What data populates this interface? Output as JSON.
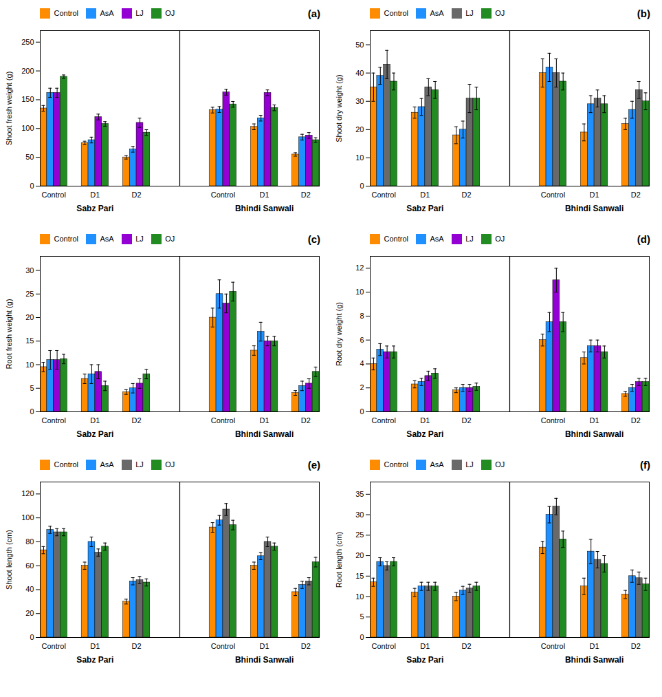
{
  "chart_data": [
    {
      "type": "bar",
      "title": "(a)",
      "ylabel": "Shoot fresh weight (g)",
      "ylim": [
        0,
        270
      ],
      "yticks": [
        0,
        50,
        100,
        150,
        200,
        250
      ],
      "categories": [
        "Control",
        "D1",
        "D2",
        "Control",
        "D1",
        "D2"
      ],
      "annotations": [
        "Sabz Pari",
        "Bhindi Sanwali"
      ],
      "legend": "upper left",
      "grid": false,
      "series": [
        {
          "name": "Control",
          "color": "#FF8C00",
          "values": [
            135,
            75,
            50,
            132,
            103,
            55
          ],
          "errors": [
            5,
            3,
            3,
            5,
            5,
            3
          ]
        },
        {
          "name": "AsA",
          "color": "#1E90FF",
          "values": [
            162,
            80,
            64,
            133,
            118,
            85
          ],
          "errors": [
            8,
            5,
            5,
            5,
            5,
            5
          ]
        },
        {
          "name": "LJ",
          "color": "#9400D3",
          "values": [
            162,
            120,
            110,
            163,
            162,
            88
          ],
          "errors": [
            8,
            5,
            8,
            5,
            5,
            5
          ]
        },
        {
          "name": "OJ",
          "color": "#228B22",
          "values": [
            190,
            108,
            93,
            142,
            136,
            80
          ],
          "errors": [
            3,
            4,
            5,
            5,
            5,
            4
          ]
        }
      ]
    },
    {
      "type": "bar",
      "title": "(b)",
      "ylabel": "Shoot dry weight (g)",
      "ylim": [
        0,
        55
      ],
      "yticks": [
        0,
        10,
        20,
        30,
        40,
        50
      ],
      "categories": [
        "Control",
        "D1",
        "D2",
        "Control",
        "D1",
        "D2"
      ],
      "annotations": [
        "Sabz Pari",
        "Bhindi Sanwali"
      ],
      "legend": "upper left",
      "grid": false,
      "series": [
        {
          "name": "Control",
          "color": "#FF8C00",
          "values": [
            35,
            26,
            18,
            40,
            19,
            22
          ],
          "errors": [
            5,
            2,
            3,
            5,
            3,
            2
          ]
        },
        {
          "name": "AsA",
          "color": "#1E90FF",
          "values": [
            39,
            28,
            20,
            42,
            29,
            27
          ],
          "errors": [
            3,
            3,
            3,
            5,
            3,
            3
          ]
        },
        {
          "name": "LJ",
          "color": "#696969",
          "values": [
            43,
            35,
            31,
            40,
            31,
            34
          ],
          "errors": [
            5,
            3,
            5,
            5,
            3,
            3
          ]
        },
        {
          "name": "OJ",
          "color": "#228B22",
          "values": [
            37,
            34,
            31,
            37,
            29,
            30
          ],
          "errors": [
            3,
            3,
            4,
            3,
            3,
            3
          ]
        }
      ]
    },
    {
      "type": "bar",
      "title": "(c)",
      "ylabel": "Root fresh weight (g)",
      "ylim": [
        0,
        33
      ],
      "yticks": [
        0,
        5,
        10,
        15,
        20,
        25,
        30
      ],
      "categories": [
        "Control",
        "D1",
        "D2",
        "Control",
        "D1",
        "D2"
      ],
      "annotations": [
        "Sabz Pari",
        "Bhindi Sanwali"
      ],
      "legend": "upper left",
      "grid": false,
      "series": [
        {
          "name": "Control",
          "color": "#FF8C00",
          "values": [
            9.5,
            7,
            4.2,
            20,
            13,
            4
          ],
          "errors": [
            1,
            1,
            0.5,
            2,
            1,
            0.5
          ]
        },
        {
          "name": "AsA",
          "color": "#1E90FF",
          "values": [
            11,
            8,
            5,
            25,
            17,
            5.5
          ],
          "errors": [
            2,
            2,
            1,
            3,
            2,
            1
          ]
        },
        {
          "name": "LJ",
          "color": "#9400D3",
          "values": [
            11,
            8.5,
            6,
            23,
            15,
            6
          ],
          "errors": [
            2,
            1.5,
            1,
            2,
            1,
            1
          ]
        },
        {
          "name": "OJ",
          "color": "#228B22",
          "values": [
            11.2,
            5.5,
            8,
            25.5,
            15,
            8.5
          ],
          "errors": [
            1,
            1,
            1,
            2,
            1,
            1
          ]
        }
      ]
    },
    {
      "type": "bar",
      "title": "(d)",
      "ylabel": "Root dry weight (g)",
      "ylim": [
        0,
        13
      ],
      "yticks": [
        0,
        2,
        4,
        6,
        8,
        10,
        12
      ],
      "categories": [
        "Control",
        "D1",
        "D2",
        "Control",
        "D1",
        "D2"
      ],
      "annotations": [
        "Sabz Pari",
        "Bhindi Sanwali"
      ],
      "legend": "upper left",
      "grid": false,
      "series": [
        {
          "name": "Control",
          "color": "#FF8C00",
          "values": [
            4,
            2.3,
            1.8,
            6,
            4.5,
            1.5
          ],
          "errors": [
            0.5,
            0.3,
            0.2,
            0.5,
            0.5,
            0.2
          ]
        },
        {
          "name": "AsA",
          "color": "#1E90FF",
          "values": [
            5.2,
            2.5,
            2,
            7.5,
            5.5,
            2
          ],
          "errors": [
            0.5,
            0.3,
            0.3,
            0.8,
            0.5,
            0.3
          ]
        },
        {
          "name": "LJ",
          "color": "#9400D3",
          "values": [
            5,
            3,
            2,
            11,
            5.5,
            2.5
          ],
          "errors": [
            0.5,
            0.4,
            0.3,
            1,
            0.5,
            0.3
          ]
        },
        {
          "name": "OJ",
          "color": "#228B22",
          "values": [
            5,
            3.2,
            2.1,
            7.5,
            5,
            2.5
          ],
          "errors": [
            0.5,
            0.4,
            0.3,
            0.8,
            0.5,
            0.3
          ]
        }
      ]
    },
    {
      "type": "bar",
      "title": "(e)",
      "ylabel": "Shoot length (cm)",
      "ylim": [
        0,
        130
      ],
      "yticks": [
        0,
        20,
        40,
        60,
        80,
        100,
        120
      ],
      "categories": [
        "Control",
        "D1",
        "D2",
        "Control",
        "D1",
        "D2"
      ],
      "annotations": [
        "Sabz Pari",
        "Bhindi Sanwali"
      ],
      "legend": "upper left",
      "grid": false,
      "series": [
        {
          "name": "Control",
          "color": "#FF8C00",
          "values": [
            73,
            60,
            30,
            92,
            60,
            38
          ],
          "errors": [
            3,
            3,
            2,
            4,
            3,
            3
          ]
        },
        {
          "name": "AsA",
          "color": "#1E90FF",
          "values": [
            90,
            80,
            47,
            98,
            68,
            44
          ],
          "errors": [
            3,
            4,
            3,
            4,
            3,
            3
          ]
        },
        {
          "name": "LJ",
          "color": "#696969",
          "values": [
            88,
            71,
            48,
            107,
            80,
            47
          ],
          "errors": [
            3,
            3,
            3,
            5,
            4,
            3
          ]
        },
        {
          "name": "OJ",
          "color": "#228B22",
          "values": [
            88,
            76,
            46,
            94,
            76,
            63
          ],
          "errors": [
            3,
            3,
            3,
            4,
            3,
            4
          ]
        }
      ]
    },
    {
      "type": "bar",
      "title": "(f)",
      "ylabel": "Root length (cm)",
      "ylim": [
        0,
        38
      ],
      "yticks": [
        0,
        5,
        10,
        15,
        20,
        25,
        30,
        35
      ],
      "categories": [
        "Control",
        "D1",
        "D2",
        "Control",
        "D1",
        "D2"
      ],
      "annotations": [
        "Sabz Pari",
        "Bhindi Sanwali"
      ],
      "legend": "upper left",
      "grid": false,
      "series": [
        {
          "name": "Control",
          "color": "#FF8C00",
          "values": [
            13.5,
            11,
            10,
            22,
            12.5,
            10.5
          ],
          "errors": [
            1,
            1,
            1,
            1.5,
            2,
            1
          ]
        },
        {
          "name": "AsA",
          "color": "#1E90FF",
          "values": [
            18.5,
            12.5,
            11.5,
            30,
            21,
            15
          ],
          "errors": [
            1,
            1,
            1,
            2,
            3,
            1.5
          ]
        },
        {
          "name": "LJ",
          "color": "#696969",
          "values": [
            17.5,
            12.5,
            12,
            32,
            19,
            14.5
          ],
          "errors": [
            1,
            1,
            1,
            2,
            2,
            1.5
          ]
        },
        {
          "name": "OJ",
          "color": "#228B22",
          "values": [
            18.5,
            12.5,
            12.5,
            24,
            18,
            13
          ],
          "errors": [
            1,
            1,
            1,
            2,
            2,
            1.5
          ]
        }
      ]
    }
  ]
}
